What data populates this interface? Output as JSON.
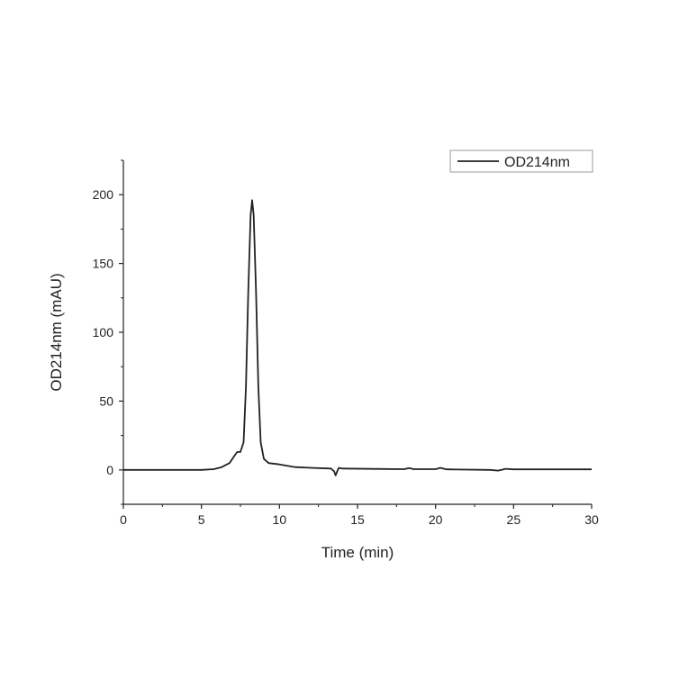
{
  "chart_data": {
    "type": "line",
    "title": "",
    "xlabel": "Time (min)",
    "ylabel": "OD214nm (mAU)",
    "xlim": [
      0,
      30
    ],
    "ylim": [
      -25,
      225
    ],
    "xticks": [
      0,
      5,
      10,
      15,
      20,
      25,
      30
    ],
    "yticks": [
      0,
      50,
      100,
      150,
      200
    ],
    "grid": false,
    "legend_position": "top-right",
    "line_color": "#222222",
    "series": [
      {
        "name": "OD214nm",
        "x": [
          0,
          5,
          5.8,
          6.3,
          6.8,
          7.1,
          7.3,
          7.5,
          7.7,
          7.85,
          8.0,
          8.15,
          8.25,
          8.35,
          8.5,
          8.65,
          8.8,
          9.0,
          9.3,
          10,
          10.5,
          11,
          12,
          13.3,
          13.5,
          13.6,
          13.7,
          13.8,
          14,
          16,
          18,
          18.3,
          18.6,
          20,
          20.3,
          20.7,
          23.5,
          24,
          24.5,
          25,
          30
        ],
        "y": [
          0,
          0,
          0.5,
          2,
          5,
          10,
          13,
          13,
          20,
          60,
          130,
          185,
          196,
          185,
          130,
          60,
          20,
          8,
          5,
          4,
          3,
          2,
          1.5,
          1,
          -1,
          -4,
          -1,
          1.5,
          1,
          0.7,
          0.5,
          1.3,
          0.5,
          0.5,
          1.5,
          0.4,
          0,
          -0.5,
          0.8,
          0.4,
          0.4
        ]
      }
    ]
  }
}
